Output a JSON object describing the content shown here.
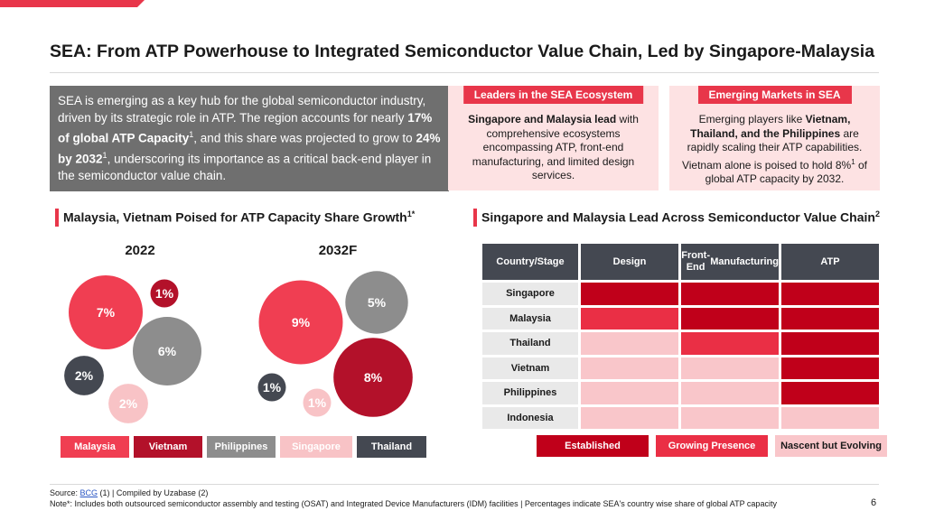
{
  "title": "SEA: From ATP Powerhouse to Integrated Semiconductor Value Chain, Led by Singapore-Malaysia",
  "intro": {
    "p1": "SEA is emerging as a key hub for the global semiconductor industry, driven by its strategic role in ATP. The region accounts for nearly ",
    "b1": "17% of global ATP Capacity",
    "s1": "1",
    "p2": ", and this share was projected to grow to ",
    "b2": "24% by 2032",
    "s2": "1",
    "p3": ", underscoring its importance as a critical back-end player in the semiconductor value chain."
  },
  "cards": [
    {
      "head": "Leaders in the SEA Ecosystem",
      "b1": "Singapore and Malaysia lead",
      "t1": " with comprehensive ecosystems encompassing ATP, front-end manufacturing, and limited design services."
    },
    {
      "head": "Emerging Markets in SEA",
      "t1": "Emerging players like ",
      "b1": "Vietnam, Thailand, and the Philippines",
      "t2": " are rapidly scaling their ATP capabilities. Vietnam alone is poised to hold 8%",
      "s1": "1",
      "t3": " of global ATP capacity by 2032."
    }
  ],
  "left_section_title": "Malaysia, Vietnam Poised for ATP Capacity Share Growth",
  "left_section_sup": "1*",
  "right_section_title": "Singapore and Malaysia Lead Across Semiconductor Value Chain",
  "right_section_sup": "2",
  "colors": {
    "Malaysia": "#f03e52",
    "Vietnam": "#b3112a",
    "Philippines": "#8d8d8d",
    "Singapore": "#f8c3c6",
    "Thailand": "#444851",
    "established": "#c0001a",
    "growing": "#ea2f45",
    "nascent": "#f9c6ca"
  },
  "chart_data": [
    {
      "type": "bubble",
      "title": "",
      "panels": [
        {
          "label": "2022",
          "values": [
            {
              "country": "Malaysia",
              "value": 7,
              "label": "7%"
            },
            {
              "country": "Vietnam",
              "value": 1,
              "label": "1%"
            },
            {
              "country": "Philippines",
              "value": 6,
              "label": "6%"
            },
            {
              "country": "Thailand",
              "value": 2,
              "label": "2%"
            },
            {
              "country": "Singapore",
              "value": 2,
              "label": "2%"
            }
          ]
        },
        {
          "label": "2032F",
          "values": [
            {
              "country": "Malaysia",
              "value": 9,
              "label": "9%"
            },
            {
              "country": "Philippines",
              "value": 5,
              "label": "5%"
            },
            {
              "country": "Vietnam",
              "value": 8,
              "label": "8%"
            },
            {
              "country": "Thailand",
              "value": 1,
              "label": "1%"
            },
            {
              "country": "Singapore",
              "value": 1,
              "label": "1%"
            }
          ]
        }
      ],
      "legend": [
        "Malaysia",
        "Vietnam",
        "Philippines",
        "Singapore",
        "Thailand"
      ]
    },
    {
      "type": "heatmap",
      "header": "Country/Stage",
      "columns": [
        "Design",
        "Front-End Manufacturing",
        "ATP"
      ],
      "rows": [
        {
          "country": "Singapore",
          "levels": [
            "Established",
            "Established",
            "Established"
          ]
        },
        {
          "country": "Malaysia",
          "levels": [
            "Growing Presence",
            "Established",
            "Established"
          ]
        },
        {
          "country": "Thailand",
          "levels": [
            "Nascent but Evolving",
            "Growing Presence",
            "Established"
          ]
        },
        {
          "country": "Vietnam",
          "levels": [
            "Nascent but Evolving",
            "Nascent but Evolving",
            "Established"
          ]
        },
        {
          "country": "Philippines",
          "levels": [
            "Nascent but Evolving",
            "Nascent but Evolving",
            "Established"
          ]
        },
        {
          "country": "Indonesia",
          "levels": [
            "Nascent but Evolving",
            "Nascent but Evolving",
            "Nascent but Evolving"
          ]
        }
      ],
      "legend": [
        "Established",
        "Growing Presence",
        "Nascent but Evolving"
      ]
    }
  ],
  "footer": {
    "source_prefix": "Source: ",
    "source_link": "BCG",
    "source_rest": " (1) | Compiled by Uzabase (2)",
    "note": "Note*: Includes both outsourced semiconductor assembly and testing  (OSAT) and Integrated Device Manufacturers (IDM) facilities | Percentages indicate SEA's country wise  share of global ATP capacity",
    "page": "6"
  }
}
